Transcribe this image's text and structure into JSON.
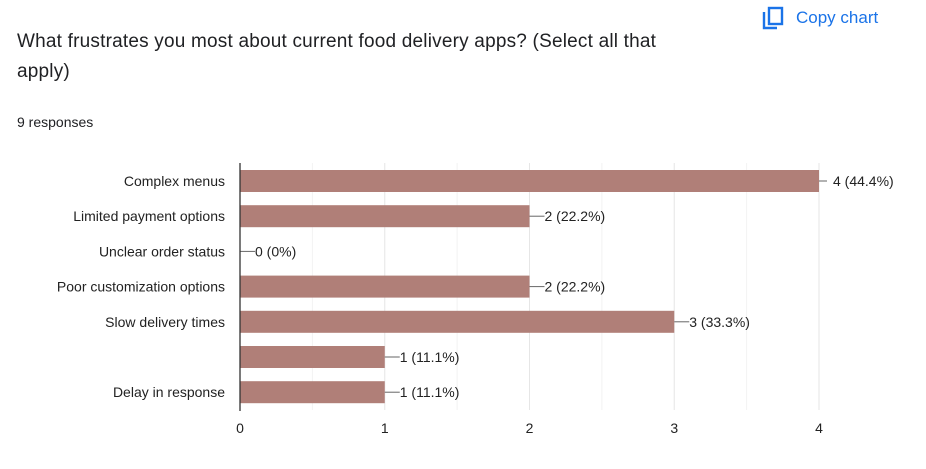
{
  "header": {
    "copy_label": "Copy chart",
    "responses": "9 responses"
  },
  "chart_data": {
    "type": "bar",
    "title": "What frustrates you most about current food delivery apps? (Select all that apply)",
    "categories": [
      "Complex menus",
      "Limited payment options",
      "Unclear order status",
      "Poor customization options",
      "Slow delivery times",
      "",
      "Delay in response"
    ],
    "values": [
      4,
      2,
      0,
      2,
      3,
      1,
      1
    ],
    "data_labels": [
      "4 (44.4%)",
      "2 (22.2%)",
      "0 (0%)",
      "2 (22.2%)",
      "3 (33.3%)",
      "1 (11.1%)",
      "1 (11.1%)"
    ],
    "xticks": [
      "0",
      "1",
      "2",
      "3",
      "4"
    ],
    "xlim": [
      0,
      4
    ],
    "bar_color": "#b07f78",
    "grid": true
  }
}
